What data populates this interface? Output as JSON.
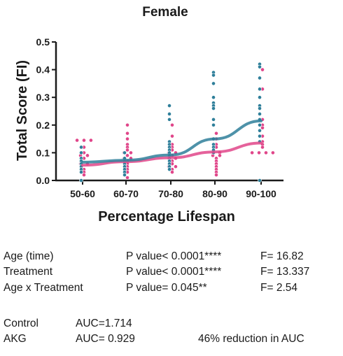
{
  "chart_data": {
    "type": "scatter",
    "title": "Female",
    "xlabel": "Percentage Lifespan",
    "ylabel": "Total Score (FI)",
    "categories": [
      "50-60",
      "60-70",
      "70-80",
      "80-90",
      "90-100"
    ],
    "ylim": [
      0,
      0.5
    ],
    "yticks": [
      "0.0",
      "0.1",
      "0.2",
      "0.3",
      "0.4",
      "0.5"
    ],
    "grid": false,
    "legend": "none",
    "series": [
      {
        "color": "#e0468a",
        "fit": [
          0.055,
          0.068,
          0.082,
          0.103,
          0.135
        ],
        "points": [
          [
            0.145,
            0.145,
            0.145,
            0.12,
            0.1,
            0.09,
            0.09,
            0.08,
            0.06,
            0.06,
            0.04,
            0.03,
            0.02
          ],
          [
            0.2,
            0.17,
            0.15,
            0.13,
            0.12,
            0.11,
            0.1,
            0.1,
            0.09,
            0.08,
            0.08,
            0.07,
            0.06,
            0.05,
            0.04,
            0.03,
            0.01
          ],
          [
            0.2,
            0.16,
            0.13,
            0.12,
            0.11,
            0.1,
            0.1,
            0.09,
            0.08,
            0.08,
            0.07,
            0.06,
            0.05,
            0.05,
            0.04,
            0.03
          ],
          [
            0.17,
            0.15,
            0.13,
            0.12,
            0.1,
            0.1,
            0.09,
            0.09,
            0.08,
            0.07,
            0.06,
            0.05,
            0.04,
            0.03,
            0.02
          ],
          [
            0.4,
            0.33,
            0.22,
            0.2,
            0.19,
            0.16,
            0.14,
            0.13,
            0.12,
            0.1,
            0.1,
            0.1,
            0.1
          ]
        ]
      },
      {
        "color": "#2f7f9a",
        "fit": [
          0.066,
          0.073,
          0.092,
          0.15,
          0.215
        ],
        "points": [
          [
            0.12,
            0.1,
            0.08,
            0.07,
            0.06,
            0.05,
            0.04,
            0.03,
            0.0
          ],
          [
            0.1,
            0.08,
            0.07,
            0.06,
            0.05,
            0.04,
            0.03,
            0.02
          ],
          [
            0.27,
            0.24,
            0.22,
            0.14,
            0.13,
            0.12,
            0.11,
            0.1,
            0.09,
            0.08,
            0.07,
            0.06,
            0.05,
            0.04
          ],
          [
            0.39,
            0.38,
            0.35,
            0.3,
            0.28,
            0.27,
            0.26,
            0.22,
            0.2,
            0.15,
            0.13,
            0.12,
            0.11,
            0.1
          ],
          [
            0.42,
            0.41,
            0.37,
            0.33,
            0.3,
            0.27,
            0.26,
            0.24,
            0.22,
            0.2,
            0.18,
            0.16,
            0.14,
            0.0
          ]
        ]
      }
    ]
  },
  "stats": {
    "age_label": "Age (time)",
    "age_p": "P value< 0.0001****",
    "age_f": "F= 16.82",
    "treat_label": "Treatment",
    "treat_p": "P value< 0.0001****",
    "treat_f": "F= 13.337",
    "inter_label": "Age x Treatment",
    "inter_p": "P value= 0.045**",
    "inter_f": "F= 2.54",
    "control_label": "Control",
    "control_auc": "AUC=1.714",
    "akg_label": "AKG",
    "akg_auc": "AUC= 0.929",
    "reduction": "46%  reduction in AUC"
  }
}
